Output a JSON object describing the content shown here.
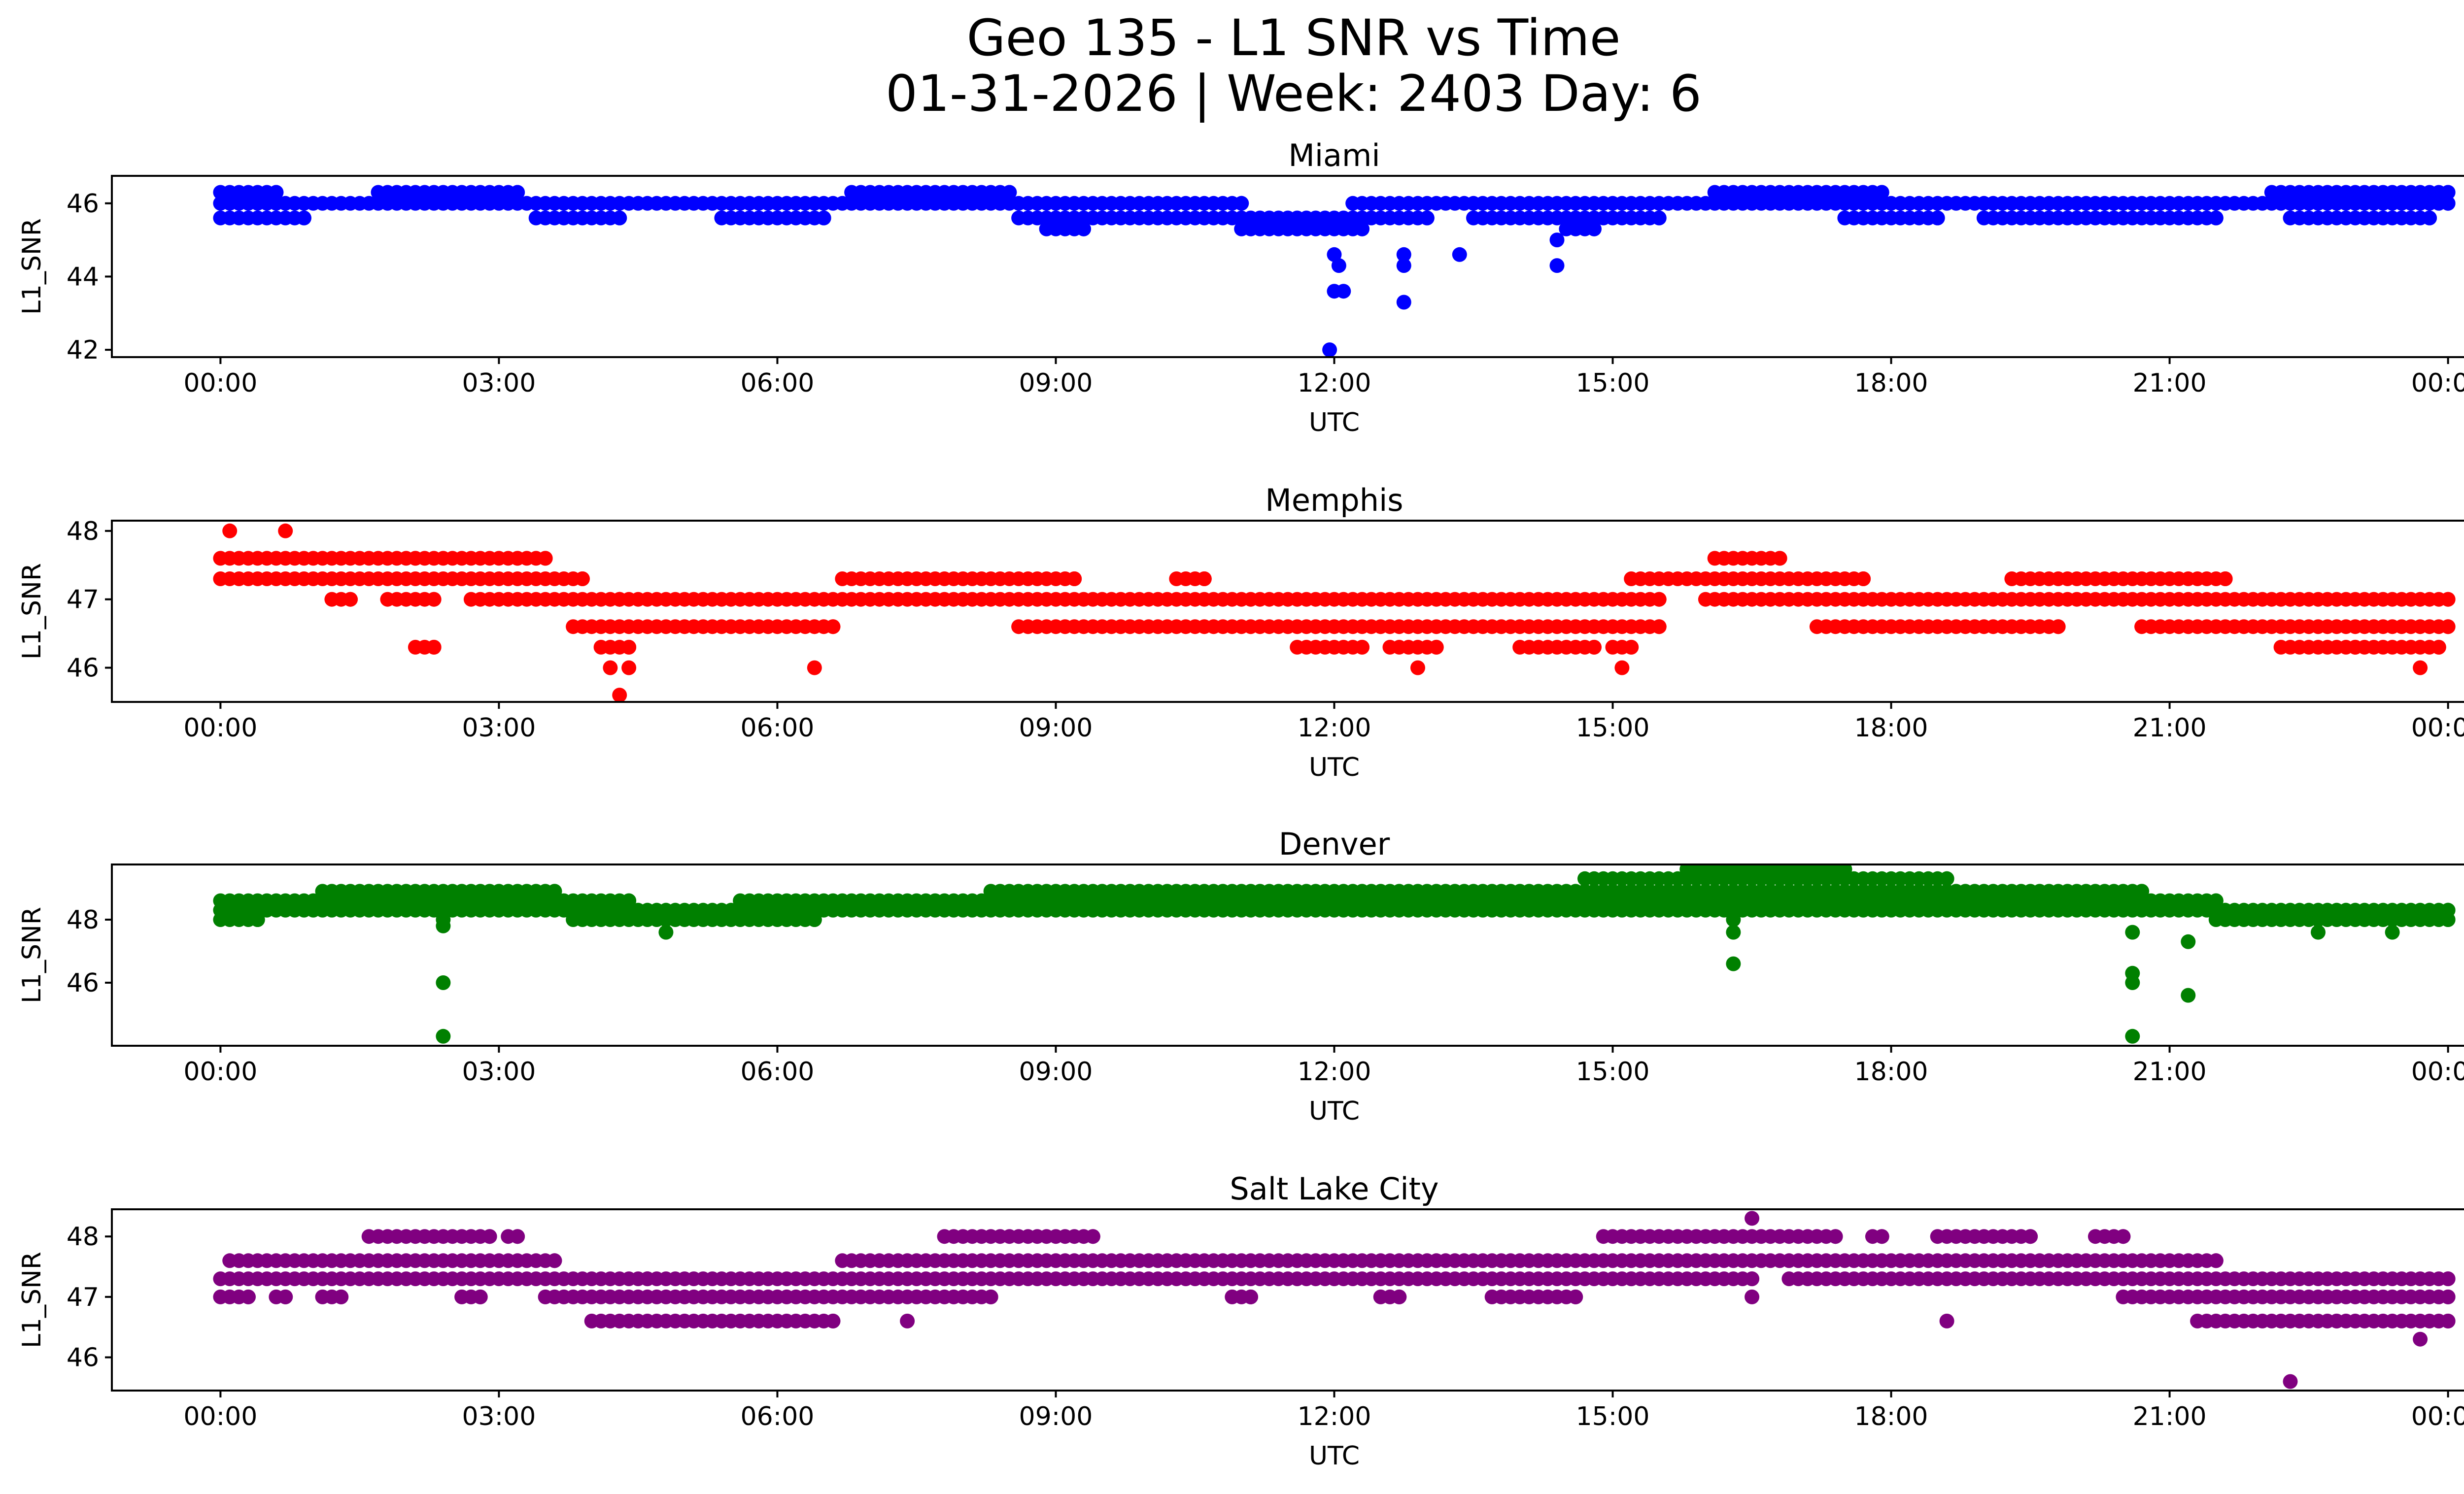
{
  "figure": {
    "title_line1": "Geo 135 - L1 SNR vs Time",
    "title_line2": "01-31-2026 | Week: 2403 Day: 6"
  },
  "chart_data": [
    {
      "type": "scatter",
      "title": "Miami",
      "xlabel": "UTC",
      "ylabel": "L1_SNR",
      "color": "#0000ff",
      "xlim_hours": [
        -1.17,
        25.17
      ],
      "ylim": [
        41.8,
        46.75
      ],
      "xticks": [
        "00:00",
        "03:00",
        "06:00",
        "09:00",
        "12:00",
        "15:00",
        "18:00",
        "21:00",
        "00:00"
      ],
      "yticks": [
        42,
        44,
        46
      ],
      "bands": [
        {
          "level": 46.3,
          "ranges": [
            [
              0,
              0.6
            ],
            [
              1.7,
              3.2
            ],
            [
              6.8,
              8.5
            ],
            [
              16.1,
              17.9
            ],
            [
              22.1,
              24
            ]
          ]
        },
        {
          "level": 46.0,
          "ranges": [
            [
              0,
              11.0
            ],
            [
              12.2,
              24
            ]
          ]
        },
        {
          "level": 45.6,
          "ranges": [
            [
              0,
              0.9
            ],
            [
              3.4,
              4.3
            ],
            [
              5.4,
              6.5
            ],
            [
              8.6,
              13.0
            ],
            [
              13.5,
              15.5
            ],
            [
              17.5,
              18.5
            ],
            [
              19.0,
              21.5
            ],
            [
              22.3,
              23.8
            ]
          ]
        },
        {
          "level": 45.3,
          "ranges": [
            [
              8.9,
              9.3
            ],
            [
              11.0,
              12.3
            ],
            [
              14.5,
              14.8
            ]
          ]
        }
      ],
      "outliers": [
        [
          11.95,
          42.0
        ],
        [
          12.0,
          43.6
        ],
        [
          12.1,
          43.6
        ],
        [
          12.05,
          44.3
        ],
        [
          12.0,
          44.6
        ],
        [
          12.75,
          43.3
        ],
        [
          12.75,
          44.3
        ],
        [
          12.75,
          44.6
        ],
        [
          13.35,
          44.6
        ],
        [
          14.4,
          44.3
        ],
        [
          14.4,
          45.0
        ]
      ]
    },
    {
      "type": "scatter",
      "title": "Memphis",
      "xlabel": "UTC",
      "ylabel": "L1_SNR",
      "color": "#ff0000",
      "xlim_hours": [
        -1.17,
        25.17
      ],
      "ylim": [
        45.5,
        48.15
      ],
      "xticks": [
        "00:00",
        "03:00",
        "06:00",
        "09:00",
        "12:00",
        "15:00",
        "18:00",
        "21:00",
        "00:00"
      ],
      "yticks": [
        46,
        47,
        48
      ],
      "bands": [
        {
          "level": 47.6,
          "ranges": [
            [
              0,
              2.1
            ],
            [
              2.2,
              3.2
            ],
            [
              3.3,
              3.5
            ],
            [
              16.1,
              16.8
            ]
          ]
        },
        {
          "level": 47.3,
          "ranges": [
            [
              0,
              3.9
            ],
            [
              6.7,
              9.2
            ],
            [
              10.3,
              10.6
            ],
            [
              15.2,
              17.7
            ],
            [
              19.3,
              21.6
            ]
          ]
        },
        {
          "level": 47.0,
          "ranges": [
            [
              1.2,
              1.4
            ],
            [
              1.8,
              2.3
            ],
            [
              2.7,
              4.3
            ],
            [
              4.3,
              15.5
            ],
            [
              16.0,
              24
            ]
          ]
        },
        {
          "level": 46.6,
          "ranges": [
            [
              3.8,
              6.6
            ],
            [
              8.6,
              15.5
            ],
            [
              17.2,
              19.8
            ],
            [
              20.7,
              24
            ]
          ]
        },
        {
          "level": 46.3,
          "ranges": [
            [
              2.1,
              2.3
            ],
            [
              4.1,
              4.4
            ],
            [
              11.6,
              12.3
            ],
            [
              12.6,
              13.1
            ],
            [
              14.0,
              14.8
            ],
            [
              15.0,
              15.2
            ],
            [
              22.2,
              23.0
            ],
            [
              23.0,
              23.9
            ]
          ]
        }
      ],
      "outliers": [
        [
          0.1,
          48.0
        ],
        [
          0.7,
          48.0
        ],
        [
          4.3,
          45.6
        ],
        [
          4.2,
          46.0
        ],
        [
          4.4,
          46.0
        ],
        [
          6.4,
          46.0
        ],
        [
          12.9,
          46.0
        ],
        [
          15.1,
          46.0
        ],
        [
          23.7,
          46.0
        ]
      ]
    },
    {
      "type": "scatter",
      "title": "Denver",
      "xlabel": "UTC",
      "ylabel": "L1_SNR",
      "color": "#008000",
      "xlim_hours": [
        -1.17,
        25.17
      ],
      "ylim": [
        44.0,
        49.75
      ],
      "xticks": [
        "00:00",
        "03:00",
        "06:00",
        "09:00",
        "12:00",
        "15:00",
        "18:00",
        "21:00",
        "00:00"
      ],
      "yticks": [
        46,
        48
      ],
      "bands": [
        {
          "level": 49.6,
          "ranges": [
            [
              15.8,
              17.5
            ]
          ]
        },
        {
          "level": 49.3,
          "ranges": [
            [
              14.7,
              18.6
            ]
          ]
        },
        {
          "level": 48.9,
          "ranges": [
            [
              1.1,
              3.6
            ],
            [
              8.3,
              20.7
            ]
          ]
        },
        {
          "level": 48.6,
          "ranges": [
            [
              0,
              4.4
            ],
            [
              5.6,
              21.5
            ]
          ]
        },
        {
          "level": 48.3,
          "ranges": [
            [
              0,
              24
            ]
          ]
        },
        {
          "level": 48.0,
          "ranges": [
            [
              0,
              0.4
            ],
            [
              3.8,
              6.4
            ],
            [
              21.5,
              24
            ]
          ]
        }
      ],
      "outliers": [
        [
          2.4,
          44.3
        ],
        [
          2.4,
          46.0
        ],
        [
          2.4,
          47.8
        ],
        [
          2.4,
          48.0
        ],
        [
          4.8,
          47.6
        ],
        [
          16.3,
          46.6
        ],
        [
          16.3,
          47.6
        ],
        [
          16.3,
          48.0
        ],
        [
          20.6,
          44.3
        ],
        [
          20.6,
          46.0
        ],
        [
          20.6,
          46.3
        ],
        [
          20.6,
          47.6
        ],
        [
          21.2,
          45.6
        ],
        [
          21.2,
          47.3
        ],
        [
          22.6,
          47.6
        ],
        [
          23.4,
          47.6
        ]
      ]
    },
    {
      "type": "scatter",
      "title": "Salt Lake City",
      "xlabel": "UTC",
      "ylabel": "L1_SNR",
      "color": "#800080",
      "xlim_hours": [
        -1.17,
        25.17
      ],
      "ylim": [
        45.45,
        48.45
      ],
      "xticks": [
        "00:00",
        "03:00",
        "06:00",
        "09:00",
        "12:00",
        "15:00",
        "18:00",
        "21:00",
        "00:00"
      ],
      "yticks": [
        46,
        47,
        48
      ],
      "bands": [
        {
          "level": 48.0,
          "ranges": [
            [
              1.6,
              2.9
            ],
            [
              3.1,
              3.2
            ],
            [
              7.8,
              9.4
            ],
            [
              14.9,
              17.4
            ],
            [
              17.8,
              17.9
            ],
            [
              18.5,
              19.5
            ],
            [
              20.2,
              20.5
            ]
          ]
        },
        {
          "level": 47.6,
          "ranges": [
            [
              0.1,
              3.6
            ],
            [
              6.7,
              21.5
            ]
          ]
        },
        {
          "level": 47.3,
          "ranges": [
            [
              0,
              4.6
            ],
            [
              4.6,
              15.2
            ],
            [
              15.3,
              16.5
            ],
            [
              16.9,
              24
            ]
          ]
        },
        {
          "level": 47.0,
          "ranges": [
            [
              0,
              0.3
            ],
            [
              0.6,
              0.7
            ],
            [
              1.1,
              1.3
            ],
            [
              2.6,
              2.8
            ],
            [
              3.5,
              8.3
            ],
            [
              10.9,
              11.1
            ],
            [
              12.5,
              12.7
            ],
            [
              13.7,
              14.6
            ],
            [
              20.5,
              24
            ]
          ]
        },
        {
          "level": 46.6,
          "ranges": [
            [
              4.0,
              6.6
            ],
            [
              21.3,
              22.8
            ],
            [
              22.9,
              24
            ]
          ]
        }
      ],
      "outliers": [
        [
          16.5,
          48.3
        ],
        [
          16.5,
          47.0
        ],
        [
          7.4,
          46.6
        ],
        [
          18.6,
          46.6
        ],
        [
          22.3,
          45.6
        ],
        [
          23.7,
          46.3
        ]
      ]
    }
  ]
}
